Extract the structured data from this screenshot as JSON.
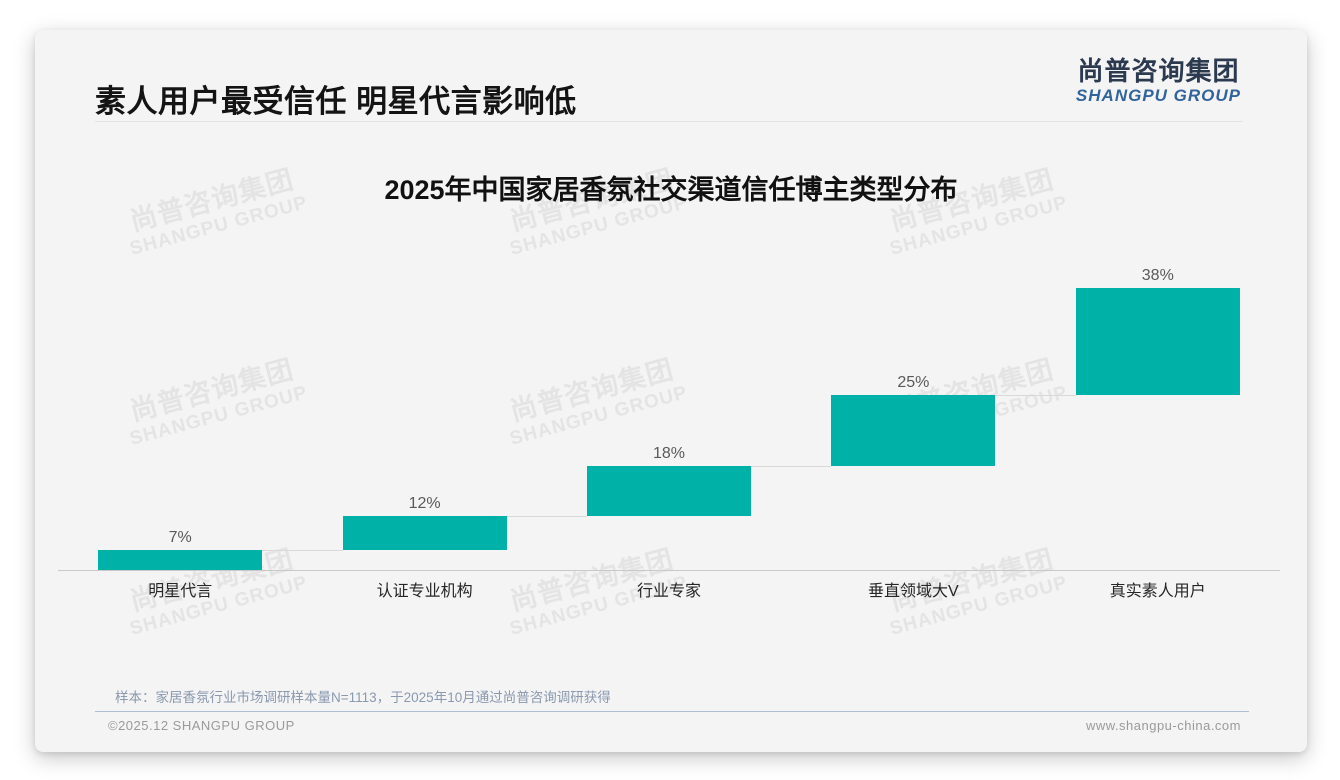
{
  "page": {
    "title": "素人用户最受信任 明星代言影响低",
    "logo": {
      "cn": "尚普咨询集团",
      "en": "SHANGPU GROUP"
    },
    "watermark": {
      "cn": "尚普咨询集团",
      "en": "SHANGPU GROUP"
    },
    "footnote": "样本：家居香氛行业市场调研样本量N=1113，于2025年10月通过尚普咨询调研获得",
    "footer": {
      "left": "©2025.12 SHANGPU GROUP",
      "right": "www.shangpu-china.com"
    }
  },
  "chart_data": {
    "type": "bar",
    "subtype": "waterfall-cumulative-steps",
    "title": "2025年中国家居香氛社交渠道信任博主类型分布",
    "categories": [
      "明星代言",
      "认证专业机构",
      "行业专家",
      "垂直领域大V",
      "真实素人用户"
    ],
    "values": [
      7,
      12,
      18,
      25,
      38
    ],
    "labels": [
      "7%",
      "12%",
      "18%",
      "25%",
      "38%"
    ],
    "unit": "%",
    "ylim": [
      0,
      100
    ],
    "grid": false,
    "legend": false,
    "colors": {
      "bar": "#00b1a7",
      "connector": "#d9d9d9",
      "axis": "#c9c9c9",
      "value_label": "#595959",
      "category_label": "#262626"
    }
  }
}
